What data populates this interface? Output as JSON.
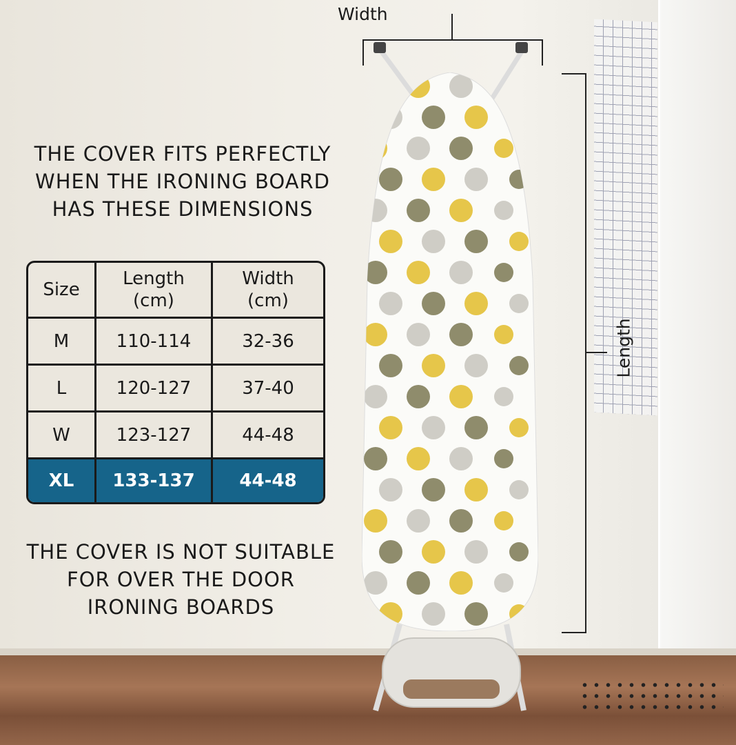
{
  "headline_top": [
    "THE COVER FITS PERFECTLY",
    "WHEN THE IRONING BOARD",
    "HAS THESE DIMENSIONS"
  ],
  "headline_bottom": [
    "THE COVER IS NOT SUITABLE",
    "FOR OVER THE DOOR",
    "IRONING BOARDS"
  ],
  "table": {
    "headers": [
      [
        "Size",
        ""
      ],
      [
        "Length",
        "(cm)"
      ],
      [
        "Width",
        "(cm)"
      ]
    ],
    "rows": [
      [
        "M",
        "110-114",
        "32-36"
      ],
      [
        "L",
        "120-127",
        "37-40"
      ],
      [
        "W",
        "123-127",
        "44-48"
      ],
      [
        "XL",
        "133-137",
        "44-48"
      ]
    ],
    "highlighted_row": "XL"
  },
  "dimension_labels": {
    "width": "Width",
    "length": "Length"
  },
  "colors": {
    "highlight": "#16648a",
    "dot_olive": "#8f8c6c",
    "dot_yellow": "#e6c64a",
    "dot_grey": "#cfcdc6"
  }
}
